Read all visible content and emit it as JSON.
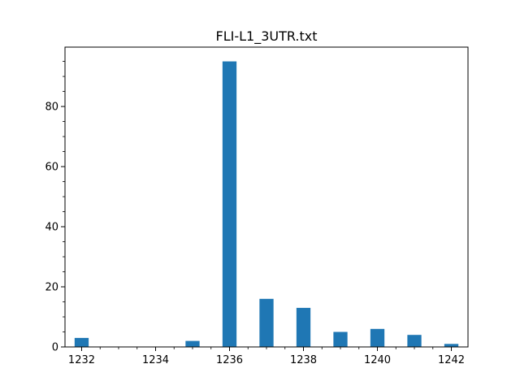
{
  "chart_data": {
    "type": "bar",
    "title": "FLI-L1_3UTR.txt",
    "xlabel": "",
    "ylabel": "",
    "x": [
      1232,
      1235,
      1236,
      1237,
      1238,
      1239,
      1240,
      1241,
      1242
    ],
    "values": [
      3,
      2,
      95,
      16,
      13,
      5,
      6,
      4,
      1
    ],
    "xlim": [
      1231.55,
      1242.45
    ],
    "ylim": [
      0,
      99.75
    ],
    "x_ticks": [
      1232,
      1234,
      1236,
      1238,
      1240,
      1242
    ],
    "y_ticks": [
      0,
      20,
      40,
      60,
      80
    ],
    "x_minor_step": 0.5,
    "y_minor_step": 5,
    "bar_width": 0.38,
    "bar_color": "#1f77b4",
    "grid": false,
    "legend": "none"
  }
}
